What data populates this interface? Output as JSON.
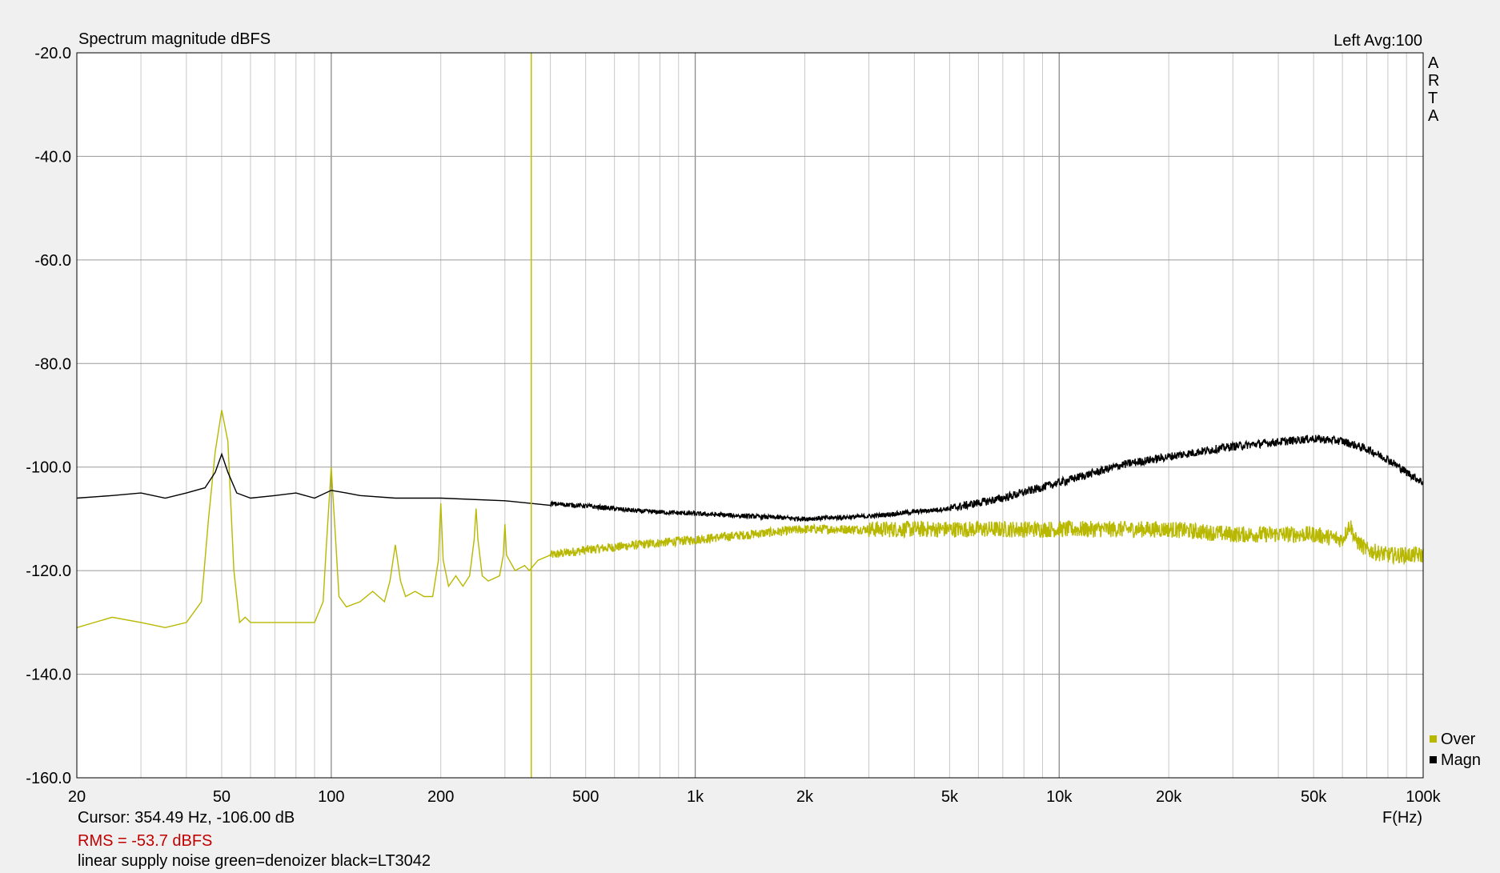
{
  "chart_data": {
    "type": "line",
    "title": "Spectrum magnitude dBFS",
    "channel_info": "Left  Avg:100",
    "brand": [
      "A",
      "R",
      "T",
      "A"
    ],
    "xlabel": "F(Hz)",
    "ylabel": "",
    "x_scale": "log",
    "xlim": [
      20,
      100000
    ],
    "ylim": [
      -160,
      -20
    ],
    "x_ticks": [
      {
        "value": 20,
        "label": "20"
      },
      {
        "value": 50,
        "label": "50"
      },
      {
        "value": 100,
        "label": "100"
      },
      {
        "value": 200,
        "label": "200"
      },
      {
        "value": 500,
        "label": "500"
      },
      {
        "value": 1000,
        "label": "1k"
      },
      {
        "value": 2000,
        "label": "2k"
      },
      {
        "value": 5000,
        "label": "5k"
      },
      {
        "value": 10000,
        "label": "10k"
      },
      {
        "value": 20000,
        "label": "20k"
      },
      {
        "value": 50000,
        "label": "50k"
      },
      {
        "value": 100000,
        "label": "100k"
      }
    ],
    "y_ticks": [
      {
        "value": -20,
        "label": "-20.0"
      },
      {
        "value": -40,
        "label": "-40.0"
      },
      {
        "value": -60,
        "label": "-60.0"
      },
      {
        "value": -80,
        "label": "-80.0"
      },
      {
        "value": -100,
        "label": "-100.0"
      },
      {
        "value": -120,
        "label": "-120.0"
      },
      {
        "value": -140,
        "label": "-140.0"
      },
      {
        "value": -160,
        "label": "-160.0"
      }
    ],
    "grid": true,
    "legend_position": "bottom-right",
    "cursor": {
      "x": 354.49,
      "color": "#c0c000"
    },
    "series": [
      {
        "name": "Over",
        "color": "#b8b800",
        "x": [
          20,
          25,
          30,
          35,
          40,
          44,
          46,
          48,
          50,
          52,
          54,
          56,
          58,
          60,
          70,
          80,
          90,
          95,
          97,
          100,
          103,
          105,
          110,
          120,
          130,
          140,
          145,
          150,
          155,
          160,
          170,
          180,
          190,
          197,
          200,
          203,
          210,
          220,
          230,
          240,
          247,
          250,
          253,
          260,
          270,
          290,
          297,
          300,
          303,
          320,
          340,
          350,
          370,
          400,
          500,
          700,
          1000,
          2000,
          3000,
          5000,
          10000,
          20000,
          30000,
          50000,
          60000,
          63000,
          65000,
          70000,
          80000,
          90000,
          100000
        ],
        "y": [
          -131,
          -129,
          -130,
          -131,
          -130,
          -126,
          -110,
          -97,
          -89,
          -95,
          -120,
          -130,
          -129,
          -130,
          -130,
          -130,
          -130,
          -126,
          -115,
          -100,
          -115,
          -125,
          -127,
          -126,
          -124,
          -126,
          -122,
          -115,
          -122,
          -125,
          -124,
          -125,
          -125,
          -118,
          -107,
          -118,
          -123,
          -121,
          -123,
          -121,
          -114,
          -108,
          -114,
          -121,
          -122,
          -121,
          -117,
          -111,
          -117,
          -120,
          -119,
          -120,
          -118,
          -117,
          -116,
          -115,
          -114,
          -112,
          -112,
          -112,
          -112,
          -112,
          -113,
          -113,
          -114,
          -111,
          -114,
          -116,
          -117,
          -117,
          -117
        ]
      },
      {
        "name": "Magn",
        "color": "#000000",
        "x": [
          20,
          25,
          30,
          35,
          40,
          45,
          48,
          50,
          52,
          55,
          60,
          70,
          80,
          90,
          100,
          110,
          120,
          150,
          200,
          300,
          500,
          700,
          1000,
          2000,
          3000,
          5000,
          7000,
          10000,
          15000,
          20000,
          30000,
          50000,
          60000,
          70000,
          80000,
          90000,
          100000
        ],
        "y": [
          -106,
          -105.5,
          -105,
          -106,
          -105,
          -104,
          -101,
          -97.5,
          -101,
          -105,
          -106,
          -105.5,
          -105,
          -106,
          -104.5,
          -105,
          -105.5,
          -106,
          -106,
          -106.5,
          -107.5,
          -108.5,
          -109,
          -110,
          -109.5,
          -108,
          -106,
          -103,
          -99.5,
          -98,
          -96,
          -94.5,
          -95,
          -96.5,
          -98.5,
          -101,
          -103
        ]
      }
    ]
  },
  "footer": {
    "cursor_text": "Cursor: 354.49 Hz, -106.00 dB",
    "rms_text": "RMS =  -53.7 dBFS",
    "note_text": "linear supply noise green=denoizer black=LT3042"
  }
}
